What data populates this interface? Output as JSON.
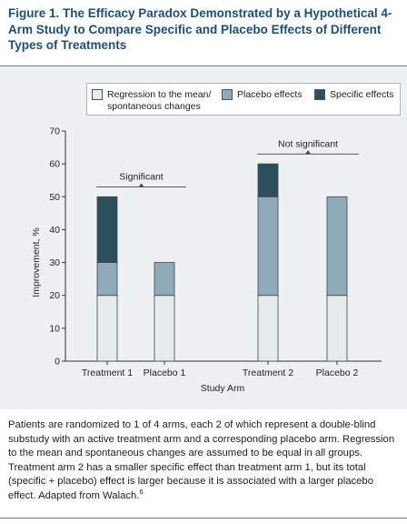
{
  "figure": {
    "title": "Figure 1. The Efficacy Paradox Demonstrated by a Hypothetical 4-Arm Study to Compare Specific and Placebo Effects of Different Types of Treatments",
    "caption": "Patients are randomized to 1 of 4 arms, each 2 of which represent a double-blind substudy with an active treatment arm and a corresponding placebo arm. Regression to the mean and spontaneous changes are assumed to be equal in all groups. Treatment arm 2 has a smaller specific effect than treatment arm 1, but its total (specific + placebo) effect is larger because it is associated with a larger placebo effect. Adapted from Walach.",
    "caption_ref": "6"
  },
  "legend": {
    "items": [
      {
        "label_line1": "Regression to the mean/",
        "label_line2": "spontaneous changes",
        "color": "#e6ebee"
      },
      {
        "label_line1": "Placebo effects",
        "label_line2": "",
        "color": "#8fabb9"
      },
      {
        "label_line1": "Specific effects",
        "label_line2": "",
        "color": "#2c4f5c"
      }
    ]
  },
  "chart_data": {
    "type": "bar",
    "stacked": true,
    "categories": [
      "Treatment 1",
      "Placebo 1",
      "Treatment 2",
      "Placebo 2"
    ],
    "series": [
      {
        "name": "Regression to the mean/ spontaneous changes",
        "values": [
          20,
          20,
          20,
          20
        ],
        "color": "#e6ebee"
      },
      {
        "name": "Placebo effects",
        "values": [
          10,
          10,
          30,
          30
        ],
        "color": "#8fabb9"
      },
      {
        "name": "Specific effects",
        "values": [
          20,
          0,
          10,
          0
        ],
        "color": "#2c4f5c"
      }
    ],
    "xlabel": "Study Arm",
    "ylabel": "Improvement, %",
    "ylim": [
      0,
      70
    ],
    "yticks": [
      0,
      10,
      20,
      30,
      40,
      50,
      60,
      70
    ],
    "grid": false,
    "annotations": [
      {
        "text": "Significant",
        "from": "Treatment 1",
        "to": "Placebo 1",
        "value": 53
      },
      {
        "text": "Not significant",
        "from": "Treatment 2",
        "to": "Placebo 2",
        "value": 63
      }
    ]
  }
}
